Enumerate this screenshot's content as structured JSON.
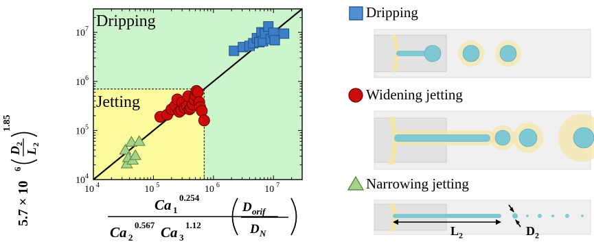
{
  "chart_data": {
    "type": "scatter",
    "xscale": "log",
    "yscale": "log",
    "xlim": [
      10000,
      30000000
    ],
    "ylim": [
      10000,
      30000000
    ],
    "x_ticks": [
      {
        "value": 10000,
        "base": "10",
        "exp": "4"
      },
      {
        "value": 100000,
        "base": "10",
        "exp": "5"
      },
      {
        "value": 1000000,
        "base": "10",
        "exp": "6"
      },
      {
        "value": 10000000,
        "base": "10",
        "exp": "7"
      }
    ],
    "y_ticks": [
      {
        "value": 10000,
        "base": "10",
        "exp": "4"
      },
      {
        "value": 100000,
        "base": "10",
        "exp": "5"
      },
      {
        "value": 1000000,
        "base": "10",
        "exp": "6"
      },
      {
        "value": 10000000,
        "base": "10",
        "exp": "7"
      }
    ],
    "grid": false,
    "regions": [
      {
        "label": "Dripping",
        "color": "#ccf5cc"
      },
      {
        "label": "Jetting",
        "color": "#fbfb9e",
        "xmax": 700000,
        "ymax": 700000
      }
    ],
    "diagonal_line": {
      "from": [
        10000,
        10000
      ],
      "to": [
        30000000,
        30000000
      ]
    },
    "series": [
      {
        "name": "Dripping",
        "marker": "square",
        "color": "#3d7fc6",
        "points": [
          [
            2200000,
            4200000
          ],
          [
            3100000,
            5000000
          ],
          [
            4000000,
            5300000
          ],
          [
            4600000,
            6000000
          ],
          [
            5300000,
            7600000
          ],
          [
            5800000,
            6300000
          ],
          [
            6300000,
            10000000
          ],
          [
            6700000,
            6600000
          ],
          [
            7200000,
            9500000
          ],
          [
            8200000,
            13200000
          ],
          [
            9000000,
            7300000
          ],
          [
            10000000,
            9800000
          ],
          [
            10500000,
            6900000
          ],
          [
            15000000,
            9400000
          ]
        ]
      },
      {
        "name": "Widening jetting",
        "marker": "circle",
        "color": "#cc0c0c",
        "points": [
          [
            130000,
            190000
          ],
          [
            170000,
            210000
          ],
          [
            200000,
            270000
          ],
          [
            230000,
            320000
          ],
          [
            250000,
            430000
          ],
          [
            270000,
            240000
          ],
          [
            290000,
            260000
          ],
          [
            300000,
            370000
          ],
          [
            330000,
            290000
          ],
          [
            360000,
            320000
          ],
          [
            380000,
            500000
          ],
          [
            400000,
            270000
          ],
          [
            420000,
            290000
          ],
          [
            450000,
            340000
          ],
          [
            480000,
            420000
          ],
          [
            500000,
            520000
          ],
          [
            520000,
            640000
          ],
          [
            550000,
            600000
          ],
          [
            580000,
            380000
          ],
          [
            600000,
            300000
          ],
          [
            640000,
            250000
          ],
          [
            700000,
            160000
          ]
        ]
      },
      {
        "name": "Narrowing jetting",
        "marker": "triangle",
        "color": "#a9d18e",
        "points": [
          [
            34000,
            40000
          ],
          [
            36000,
            21000
          ],
          [
            38000,
            28000
          ],
          [
            43000,
            58000
          ],
          [
            45000,
            25000
          ],
          [
            50000,
            31000
          ],
          [
            58000,
            60000
          ]
        ]
      }
    ],
    "region_labels": [
      "Dripping",
      "Jetting"
    ],
    "xlabel_math": {
      "num": "Ca",
      "num_sub": "1",
      "num_sup": "0.254",
      "den1": "Ca",
      "den1_sub": "2",
      "den1_sup": "0.567",
      "den2": "Ca",
      "den2_sub": "3",
      "den2_sup": "1.12",
      "frac_num": "D",
      "frac_num_sub": "orif",
      "frac_den": "D",
      "frac_den_sub": "N"
    },
    "ylabel_math": {
      "prefix": "5.7 × 10",
      "prefix_sup": "6",
      "num": "D",
      "num_sub": "2",
      "den": "L",
      "den_sub": "2",
      "power": "1.85"
    }
  },
  "legend": {
    "dripping": "Dripping",
    "widening": "Widening jetting",
    "narrowing": "Narrowing jetting"
  },
  "annotations": {
    "l2": "L",
    "l2_sub": "2",
    "d2": "D",
    "d2_sub": "2"
  },
  "colors": {
    "droplet_fill": "#7ec8d4",
    "shell_fill": "#f5e6a6",
    "tube": "#e6e6e6"
  }
}
